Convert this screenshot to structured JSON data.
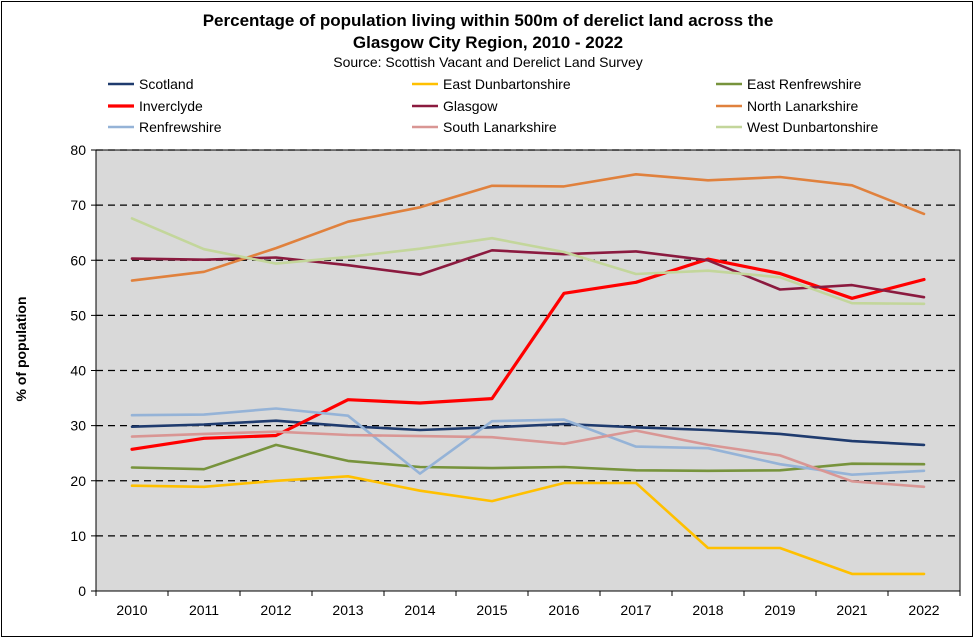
{
  "chart_data": {
    "type": "line",
    "title": [
      "Percentage of population living within 500m of derelict land across the",
      "Glasgow City Region, 2010 - 2022"
    ],
    "subtitle": "Source: Scottish Vacant and Derelict Land Survey",
    "xlabel": "",
    "ylabel": "% of population",
    "ylim": [
      0,
      80
    ],
    "yticks": [
      0,
      10,
      20,
      30,
      40,
      50,
      60,
      70,
      80
    ],
    "grid": "horizontal dashed",
    "legend_position": "top",
    "background": "#d9d9d9",
    "categories": [
      "2010",
      "2011",
      "2012",
      "2013",
      "2014",
      "2015",
      "2016",
      "2017",
      "2018",
      "2019",
      "2021",
      "2022"
    ],
    "series": [
      {
        "name": "Scotland",
        "color": "#1f3b6e",
        "values": [
          29.8,
          30.2,
          30.9,
          29.9,
          29.2,
          29.7,
          30.3,
          29.7,
          29.2,
          28.5,
          27.2,
          26.5
        ]
      },
      {
        "name": "East Dunbartonshire",
        "color": "#ffc000",
        "values": [
          19.1,
          18.9,
          20.0,
          20.8,
          18.2,
          16.3,
          19.6,
          19.6,
          7.8,
          7.8,
          3.1,
          3.1
        ]
      },
      {
        "name": "East Renfrewshire",
        "color": "#77933c",
        "values": [
          22.4,
          22.1,
          26.5,
          23.6,
          22.5,
          22.3,
          22.5,
          21.9,
          21.8,
          21.9,
          23.1,
          23.0
        ]
      },
      {
        "name": "Inverclyde",
        "color": "#ff0000",
        "values": [
          25.7,
          27.7,
          28.2,
          34.7,
          34.1,
          34.9,
          54.0,
          56.0,
          60.2,
          57.6,
          53.1,
          56.5
        ]
      },
      {
        "name": "Glasgow",
        "color": "#8b1a3f",
        "values": [
          60.3,
          60.1,
          60.5,
          59.1,
          57.4,
          61.8,
          61.1,
          61.6,
          60.0,
          54.7,
          55.5,
          53.3
        ]
      },
      {
        "name": "North Lanarkshire",
        "color": "#e0813d",
        "values": [
          56.3,
          57.9,
          62.2,
          67.0,
          69.6,
          73.5,
          73.4,
          75.6,
          74.5,
          75.1,
          73.6,
          68.4
        ]
      },
      {
        "name": "Renfrewshire",
        "color": "#95b3d7",
        "values": [
          31.9,
          32.0,
          33.1,
          31.8,
          21.3,
          30.8,
          31.1,
          26.2,
          25.9,
          23.0,
          21.1,
          21.8
        ]
      },
      {
        "name": "South Lanarkshire",
        "color": "#d99694",
        "values": [
          28.0,
          28.5,
          28.9,
          28.3,
          28.1,
          27.9,
          26.7,
          29.1,
          26.5,
          24.6,
          19.9,
          18.9
        ]
      },
      {
        "name": "West Dunbartonshire",
        "color": "#c3d69b",
        "values": [
          67.6,
          62.0,
          59.4,
          60.6,
          62.1,
          64.0,
          61.5,
          57.5,
          58.1,
          56.9,
          52.2,
          52.1
        ]
      }
    ]
  }
}
